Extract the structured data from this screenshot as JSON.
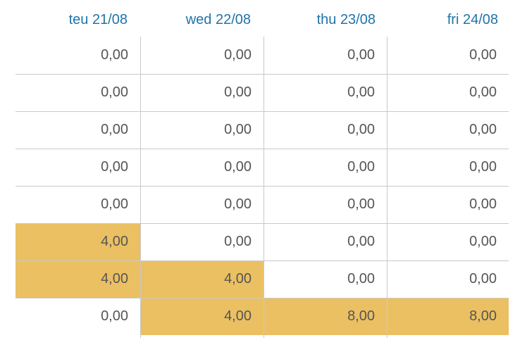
{
  "columns": [
    "teu 21/08",
    "wed 22/08",
    "thu 23/08",
    "fri 24/08"
  ],
  "rows": [
    {
      "cells": [
        {
          "value": "0,00",
          "highlight": false
        },
        {
          "value": "0,00",
          "highlight": false
        },
        {
          "value": "0,00",
          "highlight": false
        },
        {
          "value": "0,00",
          "highlight": false
        }
      ]
    },
    {
      "cells": [
        {
          "value": "0,00",
          "highlight": false
        },
        {
          "value": "0,00",
          "highlight": false
        },
        {
          "value": "0,00",
          "highlight": false
        },
        {
          "value": "0,00",
          "highlight": false
        }
      ]
    },
    {
      "cells": [
        {
          "value": "0,00",
          "highlight": false
        },
        {
          "value": "0,00",
          "highlight": false
        },
        {
          "value": "0,00",
          "highlight": false
        },
        {
          "value": "0,00",
          "highlight": false
        }
      ]
    },
    {
      "cells": [
        {
          "value": "0,00",
          "highlight": false
        },
        {
          "value": "0,00",
          "highlight": false
        },
        {
          "value": "0,00",
          "highlight": false
        },
        {
          "value": "0,00",
          "highlight": false
        }
      ]
    },
    {
      "cells": [
        {
          "value": "0,00",
          "highlight": false
        },
        {
          "value": "0,00",
          "highlight": false
        },
        {
          "value": "0,00",
          "highlight": false
        },
        {
          "value": "0,00",
          "highlight": false
        }
      ]
    },
    {
      "cells": [
        {
          "value": "4,00",
          "highlight": true
        },
        {
          "value": "0,00",
          "highlight": false
        },
        {
          "value": "0,00",
          "highlight": false
        },
        {
          "value": "0,00",
          "highlight": false
        }
      ]
    },
    {
      "cells": [
        {
          "value": "4,00",
          "highlight": true
        },
        {
          "value": "4,00",
          "highlight": true
        },
        {
          "value": "0,00",
          "highlight": false
        },
        {
          "value": "0,00",
          "highlight": false
        }
      ]
    },
    {
      "cells": [
        {
          "value": "0,00",
          "highlight": false
        },
        {
          "value": "4,00",
          "highlight": true
        },
        {
          "value": "8,00",
          "highlight": true
        },
        {
          "value": "8,00",
          "highlight": true
        }
      ]
    }
  ],
  "colors": {
    "header_text": "#1f74a8",
    "cell_text": "#555555",
    "highlight": "#ebc062",
    "grid_line": "#c9c9c9"
  }
}
